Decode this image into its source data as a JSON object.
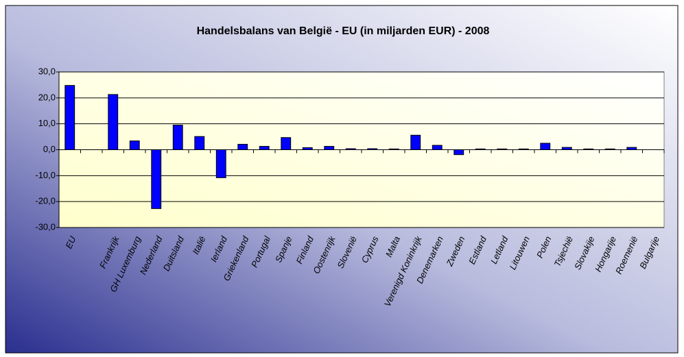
{
  "chart_data": {
    "type": "bar",
    "title": "Handelsbalans van België - EU (in miljarden EUR) - 2008",
    "categories": [
      "EU",
      null,
      "Frankrijk",
      "GH Luxemburg",
      "Nederland",
      "Duitsland",
      "Italië",
      "Ierland",
      "Griekenland",
      "Portugal",
      "Spanje",
      "Finland",
      "Oostenrijk",
      "Slovenië",
      "Cyprus",
      "Malta",
      "Verenigd Koninkrijk",
      "Denemarken",
      "Zweden",
      "Estland",
      "Letland",
      "Litouwen",
      "Polen",
      "Tsjechië",
      "Slovakije",
      "Hongarije",
      "Roemenië",
      "Bulgarije"
    ],
    "values": [
      24.8,
      null,
      21.3,
      3.4,
      -22.7,
      9.5,
      5.1,
      -10.8,
      2.1,
      1.3,
      4.7,
      0.8,
      1.3,
      0.4,
      0.4,
      0.3,
      5.6,
      1.7,
      -1.9,
      0.3,
      0.3,
      0.3,
      2.5,
      0.9,
      0.3,
      0.3,
      0.9,
      0
    ],
    "color": "#0000ff",
    "ylim": [
      -30,
      30
    ],
    "yticks": [
      {
        "value": -30,
        "label": "-30,0"
      },
      {
        "value": -20,
        "label": "-20,0"
      },
      {
        "value": -10,
        "label": "-10,0"
      },
      {
        "value": 0,
        "label": "0,0"
      },
      {
        "value": 10,
        "label": "10,0"
      },
      {
        "value": 20,
        "label": "20,0"
      },
      {
        "value": 30,
        "label": "30,0"
      }
    ],
    "grid": true
  }
}
